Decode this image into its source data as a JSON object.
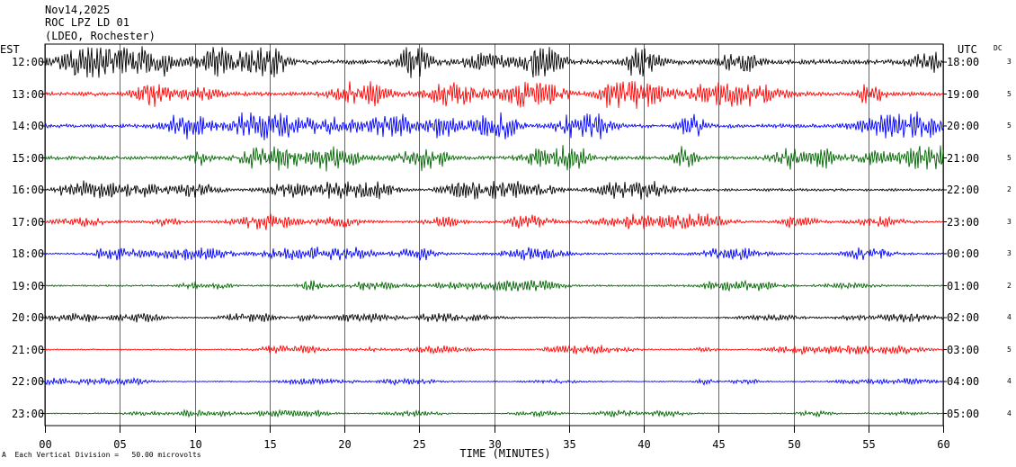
{
  "header": {
    "line1": "Nov14,2025",
    "line2": "ROC LPZ LD 01",
    "line3": "(LDEO, Rochester)"
  },
  "labels": {
    "left_tz": "EST",
    "right_tz": "UTC",
    "dc": "DC",
    "footer": "Each Vertical Division =   50.00 microvolts",
    "footer_mark": "A"
  },
  "colors": [
    "#000000",
    "#ff0000",
    "#0000ff",
    "#006600"
  ],
  "chart_data": {
    "type": "line",
    "title": "",
    "xlabel": "TIME (MINUTES)",
    "xlim": [
      0,
      60
    ],
    "x_ticks": [
      "00",
      "05",
      "10",
      "15",
      "20",
      "25",
      "30",
      "35",
      "40",
      "45",
      "50",
      "55",
      "60"
    ],
    "grid": true,
    "series": [
      {
        "est": "12:00",
        "utc": "18:00",
        "dc": "3",
        "color": "#000000",
        "amp": 14
      },
      {
        "est": "13:00",
        "utc": "19:00",
        "dc": "5",
        "color": "#ff0000",
        "amp": 12
      },
      {
        "est": "14:00",
        "utc": "20:00",
        "dc": "5",
        "color": "#0000ff",
        "amp": 12
      },
      {
        "est": "15:00",
        "utc": "21:00",
        "dc": "5",
        "color": "#006600",
        "amp": 11
      },
      {
        "est": "16:00",
        "utc": "22:00",
        "dc": "2",
        "color": "#000000",
        "amp": 8
      },
      {
        "est": "17:00",
        "utc": "23:00",
        "dc": "3",
        "color": "#ff0000",
        "amp": 7
      },
      {
        "est": "18:00",
        "utc": "00:00",
        "dc": "3",
        "color": "#0000ff",
        "amp": 6
      },
      {
        "est": "19:00",
        "utc": "01:00",
        "dc": "2",
        "color": "#006600",
        "amp": 5
      },
      {
        "est": "20:00",
        "utc": "02:00",
        "dc": "4",
        "color": "#000000",
        "amp": 4
      },
      {
        "est": "21:00",
        "utc": "03:00",
        "dc": "5",
        "color": "#ff0000",
        "amp": 4
      },
      {
        "est": "22:00",
        "utc": "04:00",
        "dc": "4",
        "color": "#0000ff",
        "amp": 3
      },
      {
        "est": "23:00",
        "utc": "05:00",
        "dc": "4",
        "color": "#006600",
        "amp": 3
      }
    ]
  }
}
